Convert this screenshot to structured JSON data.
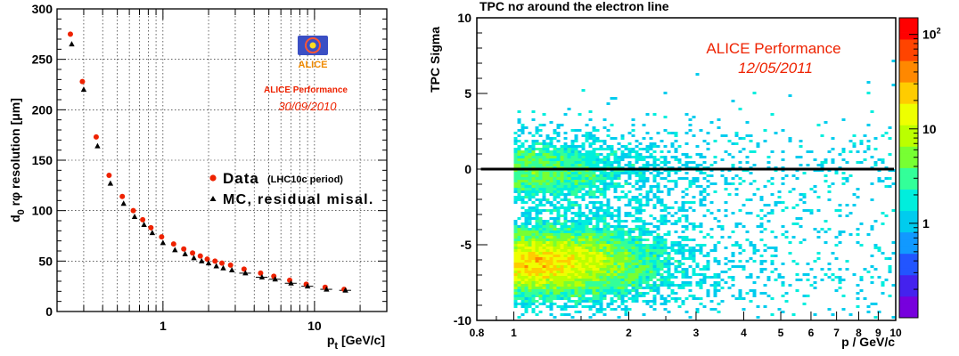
{
  "chart_data": [
    {
      "type": "scatter",
      "title": "",
      "xlabel": "p",
      "xlabel_sub": "t",
      "xlabel_unit": " [GeV/c]",
      "ylabel": "d",
      "ylabel_sub": "0",
      "ylabel_rest": " rφ resolution [μm]",
      "xscale": "log",
      "xlim": [
        0.2,
        30
      ],
      "ylim": [
        0,
        300
      ],
      "xticks": [
        {
          "value": 1,
          "label": "1"
        },
        {
          "value": 10,
          "label": "10"
        }
      ],
      "yticks": [
        0,
        50,
        100,
        150,
        200,
        250,
        300
      ],
      "grid": true,
      "logo_text": "ALICE",
      "performance_label": "ALICE Performance",
      "performance_date": "30/09/2010",
      "legend_position": "middle-right",
      "series": [
        {
          "name": "Data",
          "name_note": "(LHC10c period)",
          "color": "#ee2200",
          "marker": "circle",
          "x": [
            0.25,
            0.3,
            0.37,
            0.45,
            0.55,
            0.65,
            0.75,
            0.85,
            1.0,
            1.2,
            1.4,
            1.6,
            1.8,
            2.0,
            2.25,
            2.5,
            2.85,
            3.5,
            4.5,
            5.5,
            7.0,
            9.0,
            12.0,
            16.0
          ],
          "y": [
            275,
            228,
            173,
            135,
            114,
            100,
            91,
            83,
            74,
            67,
            62,
            58,
            55,
            52,
            50,
            48,
            46,
            42,
            38,
            35,
            31,
            27,
            24,
            22
          ]
        },
        {
          "name": "MC, residual misal.",
          "color": "#000000",
          "marker": "triangle",
          "x": [
            0.25,
            0.3,
            0.37,
            0.45,
            0.55,
            0.65,
            0.75,
            0.85,
            1.0,
            1.2,
            1.4,
            1.6,
            1.8,
            2.0,
            2.25,
            2.5,
            2.85,
            3.5,
            4.5,
            5.5,
            7.0,
            9.0,
            12.0,
            16.0
          ],
          "y": [
            265,
            220,
            164,
            127,
            107,
            94,
            86,
            78,
            68,
            61,
            57,
            53,
            50,
            48,
            45,
            43,
            41,
            38,
            34,
            32,
            28,
            25,
            22,
            21
          ]
        }
      ]
    },
    {
      "type": "heatmap",
      "title": "TPC nσ around the electron line",
      "xlabel": "p / GeV/c",
      "ylabel": "TPC Sigma",
      "xscale": "log",
      "xlim": [
        0.8,
        10
      ],
      "ylim": [
        -10,
        10
      ],
      "xticks": [
        {
          "value": 0.8,
          "label": "0.8"
        },
        {
          "value": 1,
          "label": "1"
        },
        {
          "value": 2,
          "label": "2"
        },
        {
          "value": 3,
          "label": "3"
        },
        {
          "value": 4,
          "label": "4"
        },
        {
          "value": 5,
          "label": "5"
        },
        {
          "value": 6,
          "label": "6"
        },
        {
          "value": 7,
          "label": "7"
        },
        {
          "value": 8,
          "label": "8"
        },
        {
          "value": 9,
          "label": "9"
        },
        {
          "value": 10,
          "label": "10"
        }
      ],
      "yticks": [
        -10,
        -5,
        0,
        5,
        10
      ],
      "reference_line_y": 0,
      "performance_label": "ALICE Performance",
      "performance_date": "12/05/2011",
      "bands": [
        {
          "center": 0,
          "width": 1.0,
          "peak_momentum": 1.05
        },
        {
          "center": -6.1,
          "width": 1.0,
          "peak_momentum": 1.1
        }
      ],
      "colorbar": {
        "scale": "log",
        "range": [
          0.1,
          150
        ],
        "ticks": [
          {
            "value": 1,
            "label": "1"
          },
          {
            "value": 10,
            "label": "10"
          },
          {
            "value": 100,
            "label": "10",
            "exponent": "2"
          }
        ],
        "palette": [
          "#7700dd",
          "#4422ee",
          "#2255ff",
          "#1199ff",
          "#00ccee",
          "#00eedd",
          "#33ff99",
          "#77ff33",
          "#bbff00",
          "#eeff00",
          "#ffcc00",
          "#ff8800",
          "#ff4400",
          "#ff0000"
        ]
      }
    }
  ]
}
